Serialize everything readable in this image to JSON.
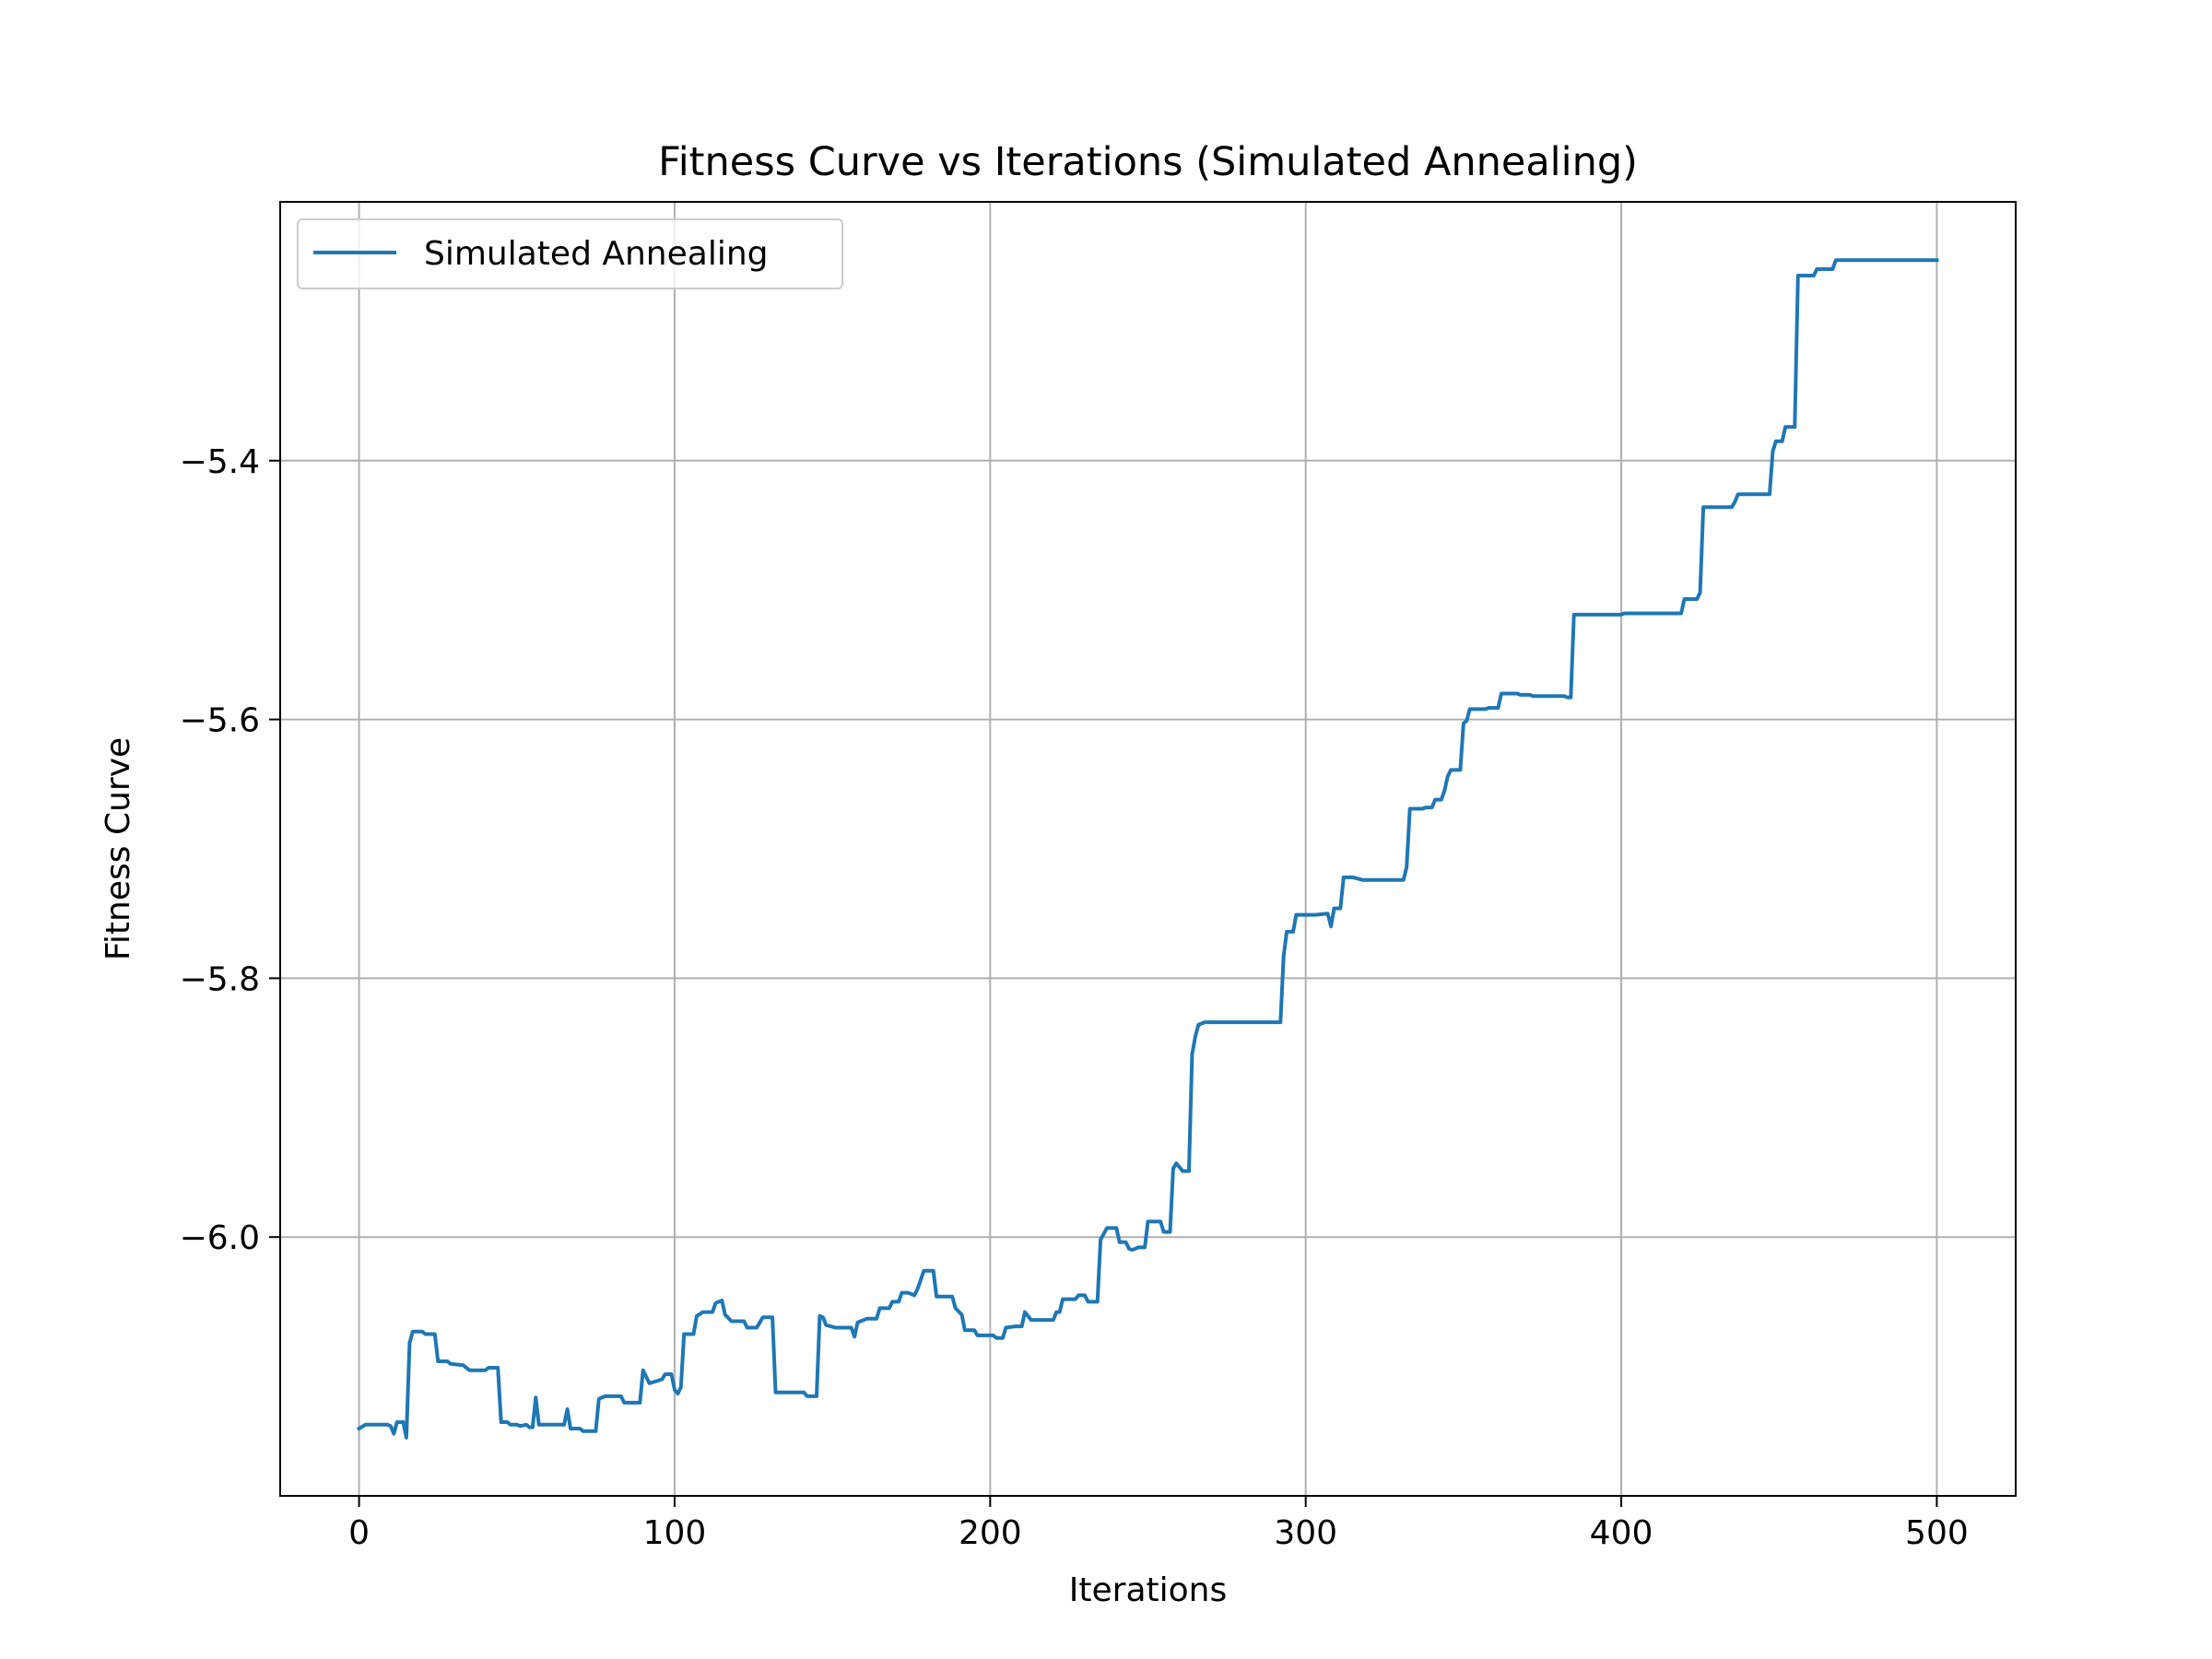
{
  "chart_data": {
    "type": "line",
    "title": "Fitness Curve vs Iterations (Simulated Annealing)",
    "xlabel": "Iterations",
    "ylabel": "Fitness Curve",
    "xlim": [
      -25,
      525
    ],
    "ylim": [
      -6.2,
      -5.2
    ],
    "xticks": [
      0,
      100,
      200,
      300,
      400,
      500
    ],
    "xtick_labels": [
      "0",
      "100",
      "200",
      "300",
      "400",
      "500"
    ],
    "yticks": [
      -6.0,
      -5.8,
      -5.6,
      -5.4
    ],
    "ytick_labels": [
      "−6.0",
      "−5.8",
      "−5.6",
      "−5.4"
    ],
    "grid": true,
    "legend_position": "upper left",
    "series": [
      {
        "name": "Simulated Annealing",
        "color": "#1f77b4",
        "points": [
          [
            0,
            -6.148
          ],
          [
            2,
            -6.145
          ],
          [
            5,
            -6.145
          ],
          [
            9,
            -6.145
          ],
          [
            10,
            -6.146
          ],
          [
            11,
            -6.152
          ],
          [
            12,
            -6.143
          ],
          [
            14,
            -6.143
          ],
          [
            15,
            -6.155
          ],
          [
            16,
            -6.082
          ],
          [
            17,
            -6.073
          ],
          [
            20,
            -6.073
          ],
          [
            21,
            -6.075
          ],
          [
            24,
            -6.075
          ],
          [
            25,
            -6.096
          ],
          [
            28,
            -6.096
          ],
          [
            29,
            -6.098
          ],
          [
            33,
            -6.099
          ],
          [
            35,
            -6.103
          ],
          [
            40,
            -6.103
          ],
          [
            41,
            -6.101
          ],
          [
            44,
            -6.101
          ],
          [
            45,
            -6.143
          ],
          [
            47,
            -6.143
          ],
          [
            48,
            -6.145
          ],
          [
            50,
            -6.145
          ],
          [
            51,
            -6.146
          ],
          [
            53,
            -6.145
          ],
          [
            54,
            -6.147
          ],
          [
            55,
            -6.147
          ],
          [
            56,
            -6.124
          ],
          [
            57,
            -6.145
          ],
          [
            65,
            -6.145
          ],
          [
            66,
            -6.133
          ],
          [
            67,
            -6.148
          ],
          [
            70,
            -6.148
          ],
          [
            71,
            -6.15
          ],
          [
            75,
            -6.15
          ],
          [
            76,
            -6.125
          ],
          [
            78,
            -6.123
          ],
          [
            83,
            -6.123
          ],
          [
            84,
            -6.128
          ],
          [
            89,
            -6.128
          ],
          [
            90,
            -6.103
          ],
          [
            92,
            -6.113
          ],
          [
            96,
            -6.11
          ],
          [
            97,
            -6.106
          ],
          [
            99,
            -6.106
          ],
          [
            100,
            -6.118
          ],
          [
            101,
            -6.121
          ],
          [
            102,
            -6.116
          ],
          [
            103,
            -6.075
          ],
          [
            106,
            -6.075
          ],
          [
            107,
            -6.061
          ],
          [
            109,
            -6.058
          ],
          [
            112,
            -6.058
          ],
          [
            113,
            -6.051
          ],
          [
            115,
            -6.049
          ],
          [
            116,
            -6.06
          ],
          [
            118,
            -6.065
          ],
          [
            122,
            -6.065
          ],
          [
            123,
            -6.07
          ],
          [
            126,
            -6.07
          ],
          [
            128,
            -6.062
          ],
          [
            131,
            -6.062
          ],
          [
            132,
            -6.12
          ],
          [
            141,
            -6.12
          ],
          [
            142,
            -6.123
          ],
          [
            145,
            -6.123
          ],
          [
            146,
            -6.061
          ],
          [
            147,
            -6.062
          ],
          [
            148,
            -6.068
          ],
          [
            151,
            -6.07
          ],
          [
            156,
            -6.07
          ],
          [
            157,
            -6.077
          ],
          [
            158,
            -6.066
          ],
          [
            161,
            -6.063
          ],
          [
            164,
            -6.063
          ],
          [
            165,
            -6.055
          ],
          [
            168,
            -6.055
          ],
          [
            169,
            -6.05
          ],
          [
            171,
            -6.05
          ],
          [
            172,
            -6.043
          ],
          [
            174,
            -6.043
          ],
          [
            176,
            -6.045
          ],
          [
            177,
            -6.04
          ],
          [
            179,
            -6.026
          ],
          [
            182,
            -6.026
          ],
          [
            183,
            -6.046
          ],
          [
            188,
            -6.046
          ],
          [
            189,
            -6.055
          ],
          [
            191,
            -6.06
          ],
          [
            192,
            -6.072
          ],
          [
            195,
            -6.072
          ],
          [
            196,
            -6.076
          ],
          [
            201,
            -6.076
          ],
          [
            202,
            -6.078
          ],
          [
            204,
            -6.078
          ],
          [
            205,
            -6.07
          ],
          [
            208,
            -6.069
          ],
          [
            210,
            -6.069
          ],
          [
            211,
            -6.058
          ],
          [
            213,
            -6.064
          ],
          [
            220,
            -6.064
          ],
          [
            221,
            -6.058
          ],
          [
            222,
            -6.058
          ],
          [
            223,
            -6.048
          ],
          [
            227,
            -6.048
          ],
          [
            228,
            -6.045
          ],
          [
            230,
            -6.045
          ],
          [
            231,
            -6.05
          ],
          [
            234,
            -6.05
          ],
          [
            235,
            -6.002
          ],
          [
            237,
            -5.993
          ],
          [
            240,
            -5.993
          ],
          [
            241,
            -6.004
          ],
          [
            243,
            -6.004
          ],
          [
            244,
            -6.009
          ],
          [
            245,
            -6.01
          ],
          [
            247,
            -6.008
          ],
          [
            249,
            -6.008
          ],
          [
            250,
            -5.988
          ],
          [
            254,
            -5.988
          ],
          [
            255,
            -5.996
          ],
          [
            257,
            -5.996
          ],
          [
            258,
            -5.947
          ],
          [
            259,
            -5.943
          ],
          [
            261,
            -5.949
          ],
          [
            263,
            -5.949
          ],
          [
            264,
            -5.859
          ],
          [
            265,
            -5.845
          ],
          [
            266,
            -5.836
          ],
          [
            268,
            -5.834
          ],
          [
            292,
            -5.834
          ],
          [
            293,
            -5.783
          ],
          [
            294,
            -5.764
          ],
          [
            296,
            -5.764
          ],
          [
            297,
            -5.751
          ],
          [
            303,
            -5.751
          ],
          [
            307,
            -5.75
          ],
          [
            308,
            -5.76
          ],
          [
            309,
            -5.746
          ],
          [
            311,
            -5.746
          ],
          [
            312,
            -5.722
          ],
          [
            315,
            -5.722
          ],
          [
            318,
            -5.724
          ],
          [
            331,
            -5.724
          ],
          [
            332,
            -5.714
          ],
          [
            333,
            -5.669
          ],
          [
            337,
            -5.669
          ],
          [
            338,
            -5.668
          ],
          [
            340,
            -5.668
          ],
          [
            341,
            -5.662
          ],
          [
            343,
            -5.662
          ],
          [
            344,
            -5.655
          ],
          [
            345,
            -5.644
          ],
          [
            346,
            -5.639
          ],
          [
            349,
            -5.639
          ],
          [
            350,
            -5.603
          ],
          [
            351,
            -5.601
          ],
          [
            352,
            -5.592
          ],
          [
            357,
            -5.592
          ],
          [
            358,
            -5.591
          ],
          [
            361,
            -5.591
          ],
          [
            362,
            -5.58
          ],
          [
            367,
            -5.58
          ],
          [
            368,
            -5.581
          ],
          [
            371,
            -5.581
          ],
          [
            372,
            -5.582
          ],
          [
            382,
            -5.582
          ],
          [
            383,
            -5.583
          ],
          [
            384,
            -5.583
          ],
          [
            385,
            -5.519
          ],
          [
            400,
            -5.519
          ],
          [
            401,
            -5.518
          ],
          [
            419,
            -5.518
          ],
          [
            420,
            -5.507
          ],
          [
            424,
            -5.507
          ],
          [
            425,
            -5.502
          ],
          [
            426,
            -5.436
          ],
          [
            435,
            -5.436
          ],
          [
            436,
            -5.432
          ],
          [
            437,
            -5.426
          ],
          [
            447,
            -5.426
          ],
          [
            448,
            -5.393
          ],
          [
            449,
            -5.385
          ],
          [
            451,
            -5.385
          ],
          [
            452,
            -5.374
          ],
          [
            455,
            -5.374
          ],
          [
            456,
            -5.257
          ],
          [
            461,
            -5.257
          ],
          [
            462,
            -5.252
          ],
          [
            467,
            -5.252
          ],
          [
            468,
            -5.245
          ],
          [
            477,
            -5.245
          ],
          [
            500,
            -5.245
          ]
        ]
      }
    ]
  }
}
